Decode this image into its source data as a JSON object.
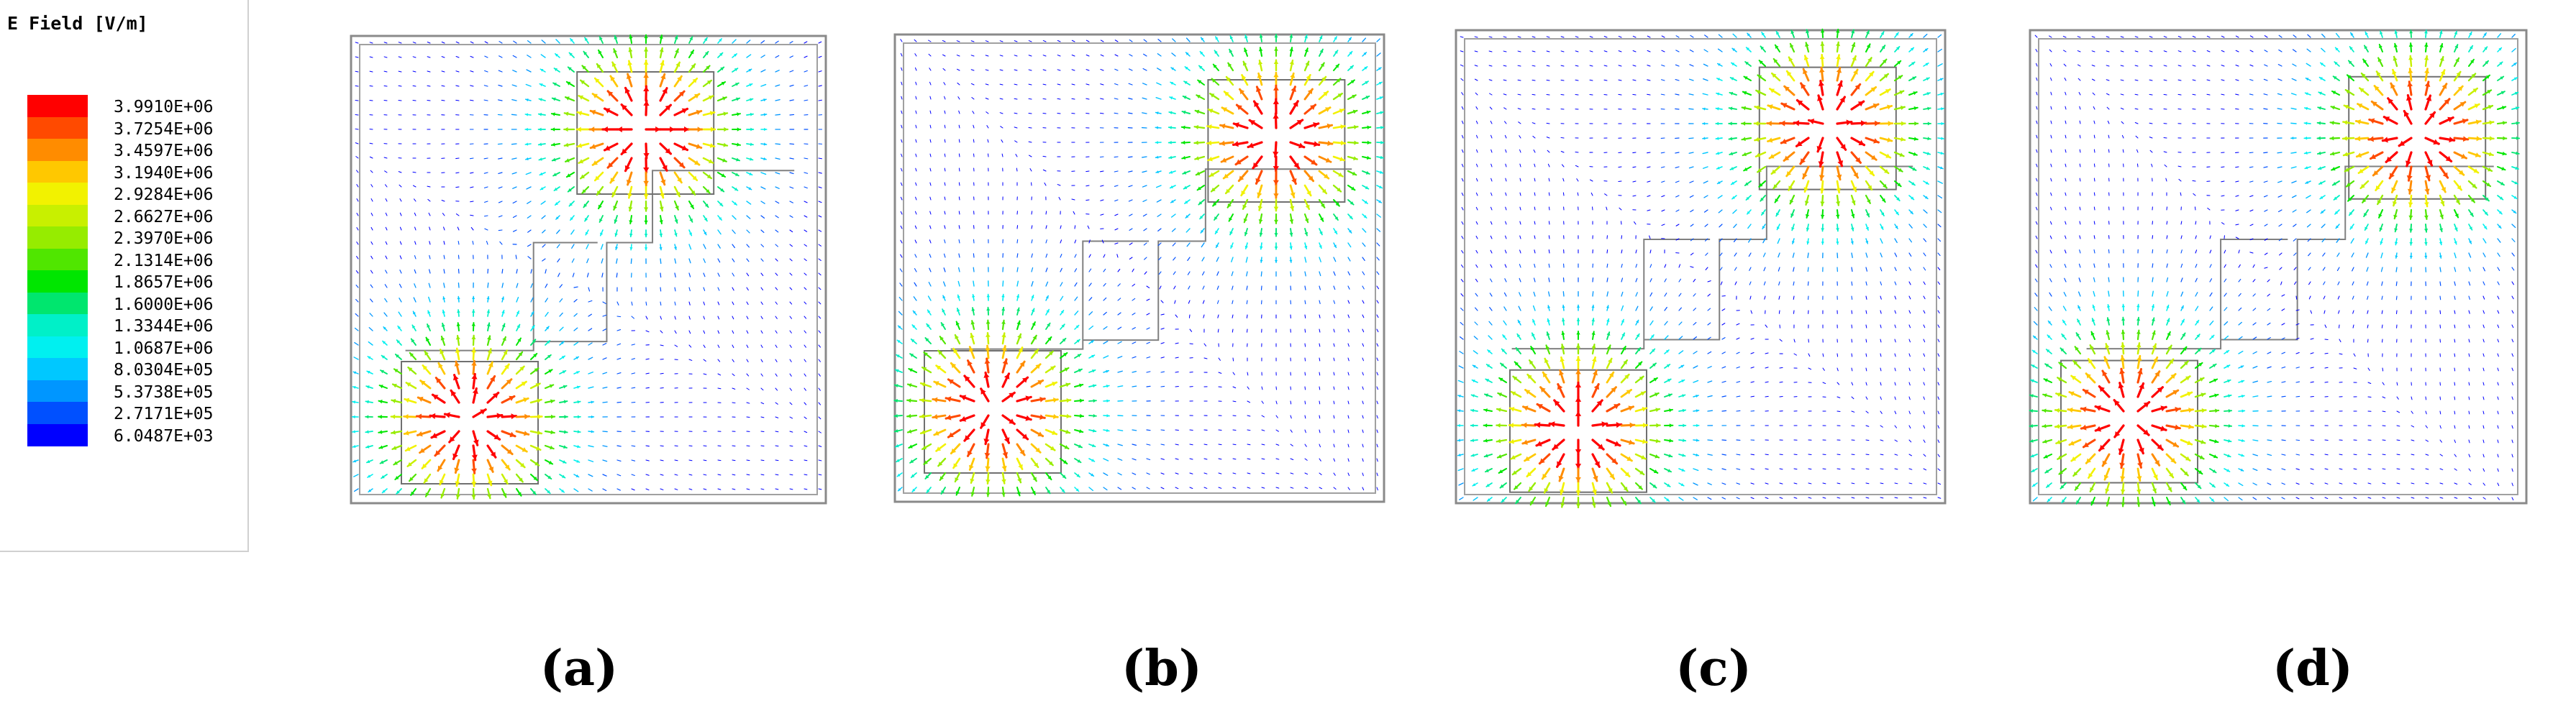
{
  "legend": {
    "title": "E Field [V/m]",
    "entries": [
      {
        "label": "3.9910E+06",
        "color": "#ff0000"
      },
      {
        "label": "3.7254E+06",
        "color": "#ff4a00"
      },
      {
        "label": "3.4597E+06",
        "color": "#ff8c00"
      },
      {
        "label": "3.1940E+06",
        "color": "#ffc800"
      },
      {
        "label": "2.9284E+06",
        "color": "#f2f200"
      },
      {
        "label": "2.6627E+06",
        "color": "#c8f000"
      },
      {
        "label": "2.3970E+06",
        "color": "#96ec00"
      },
      {
        "label": "2.1314E+06",
        "color": "#50e600"
      },
      {
        "label": "1.8657E+06",
        "color": "#00e600"
      },
      {
        "label": "1.6000E+06",
        "color": "#00e66e"
      },
      {
        "label": "1.3344E+06",
        "color": "#00f0c8"
      },
      {
        "label": "1.0687E+06",
        "color": "#00f0f0"
      },
      {
        "label": "8.0304E+05",
        "color": "#00c8ff"
      },
      {
        "label": "5.3738E+05",
        "color": "#0096ff"
      },
      {
        "label": "2.7171E+05",
        "color": "#0050ff"
      },
      {
        "label": "6.0487E+03",
        "color": "#0000ff"
      }
    ]
  },
  "panels": [
    {
      "caption": "(a)",
      "hotspots": [
        [
          0.62,
          0.2
        ],
        [
          0.25,
          0.82
        ]
      ]
    },
    {
      "caption": "(b)",
      "hotspots": [
        [
          0.78,
          0.22
        ],
        [
          0.2,
          0.8
        ]
      ]
    },
    {
      "caption": "(c)",
      "hotspots": [
        [
          0.76,
          0.2
        ],
        [
          0.25,
          0.84
        ]
      ]
    },
    {
      "caption": "(d)",
      "hotspots": [
        [
          0.78,
          0.22
        ],
        [
          0.2,
          0.82
        ]
      ]
    }
  ]
}
